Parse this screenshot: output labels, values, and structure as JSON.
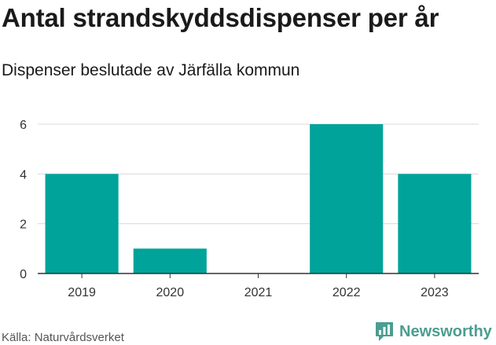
{
  "header": {
    "title": "Antal strandskyddsdispenser per år",
    "subtitle": "Dispenser beslutade av Järfälla kommun"
  },
  "footer": {
    "source": "Källa: Naturvårdsverket",
    "brand": "Newsworthy",
    "brand_icon": "bar-chart-bubble-icon"
  },
  "colors": {
    "bar": "#00A39A",
    "grid": "#d9d9d9",
    "axis": "#333333",
    "brand": "#4a9e90"
  },
  "chart_data": {
    "type": "bar",
    "title": "Antal strandskyddsdispenser per år",
    "subtitle": "Dispenser beslutade av Järfälla kommun",
    "categories": [
      "2019",
      "2020",
      "2021",
      "2022",
      "2023"
    ],
    "values": [
      4,
      1,
      0,
      6,
      4
    ],
    "yticks": [
      0,
      2,
      4,
      6
    ],
    "ylim": [
      0,
      6
    ],
    "xlabel": "",
    "ylabel": "",
    "grid": true
  }
}
